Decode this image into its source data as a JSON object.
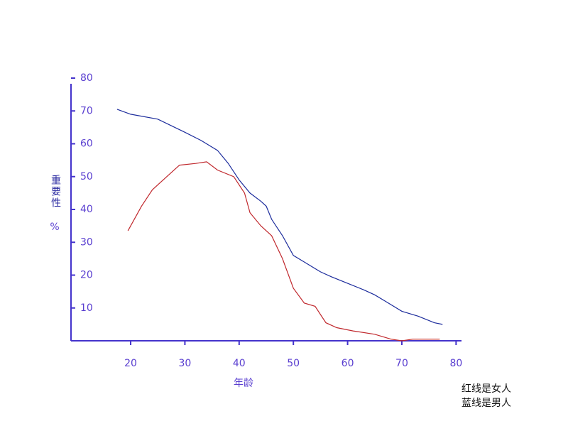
{
  "chart_data": {
    "type": "line",
    "y_label": "重要性",
    "y_unit": "%",
    "x_label": "年龄",
    "notes": [
      "红线是女人",
      "蓝线是男人"
    ],
    "xlim": [
      9,
      81
    ],
    "xticks": [
      20,
      30,
      40,
      50,
      60,
      70,
      80
    ],
    "ylim": [
      0,
      80
    ],
    "yticks": [
      10,
      20,
      30,
      40,
      50,
      60,
      70,
      80
    ],
    "series": [
      {
        "name": "男人",
        "color": "#1c2c9c",
        "x": [
          17.5,
          20,
          25,
          30,
          33,
          36,
          38,
          40,
          42,
          44,
          45,
          46,
          48,
          50,
          52,
          55,
          57,
          60,
          63,
          65,
          67,
          70,
          73,
          76,
          77.5
        ],
        "values": [
          70.5,
          69,
          67.5,
          63.5,
          61,
          58,
          54,
          49,
          45,
          42.5,
          41,
          37,
          32,
          26,
          24,
          21,
          19.5,
          17.5,
          15.5,
          14,
          12,
          9,
          7.5,
          5.5,
          5
        ]
      },
      {
        "name": "女人",
        "color": "#c0282d",
        "x": [
          19.5,
          22,
          24,
          27,
          29,
          32,
          34,
          36,
          39,
          41,
          42,
          44,
          46,
          48,
          50,
          52,
          54,
          56,
          58,
          61,
          65,
          68,
          70,
          72,
          75,
          77
        ],
        "values": [
          33.5,
          41,
          46,
          50.5,
          53.5,
          54,
          54.5,
          52,
          50,
          45,
          39,
          35,
          32,
          25,
          16,
          11.5,
          10.5,
          5.5,
          4,
          3,
          2,
          0.5,
          0,
          0.5,
          0.5,
          0.5
        ]
      }
    ]
  }
}
